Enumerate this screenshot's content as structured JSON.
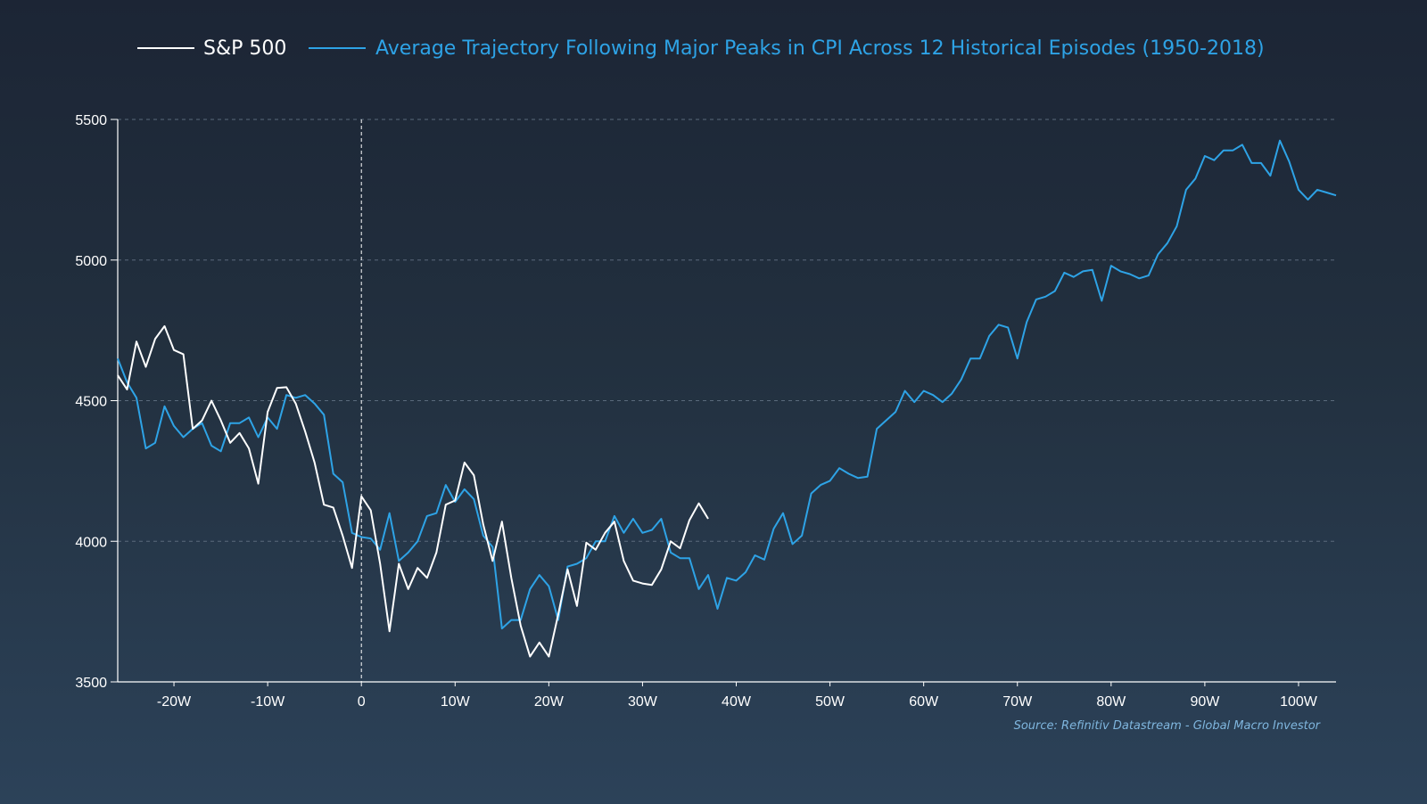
{
  "colors": {
    "background_top": "#1c2535",
    "background_bottom": "#2c4259",
    "sp500": "#ffffff",
    "average": "#2ea3e6",
    "axis": "#ffffff",
    "grid": "#5a6a7c",
    "source": "#7fb6de"
  },
  "legend": {
    "items": [
      {
        "label": "S&P 500",
        "color": "#ffffff"
      },
      {
        "label": "Average Trajectory Following Major Peaks in CPI Across 12 Historical Episodes (1950-2018)",
        "color": "#2ea3e6"
      }
    ]
  },
  "source": "Source: Refinitiv Datastream - Global Macro Investor",
  "chart_data": {
    "type": "line",
    "title": "",
    "xlabel": "",
    "ylabel": "",
    "xlim": [
      -26,
      104
    ],
    "ylim": [
      3500,
      5500
    ],
    "x_ticks": [
      {
        "value": -20,
        "label": "-20W"
      },
      {
        "value": -10,
        "label": "-10W"
      },
      {
        "value": 0,
        "label": "0"
      },
      {
        "value": 10,
        "label": "10W"
      },
      {
        "value": 20,
        "label": "20W"
      },
      {
        "value": 30,
        "label": "30W"
      },
      {
        "value": 40,
        "label": "40W"
      },
      {
        "value": 50,
        "label": "50W"
      },
      {
        "value": 60,
        "label": "60W"
      },
      {
        "value": 70,
        "label": "70W"
      },
      {
        "value": 80,
        "label": "80W"
      },
      {
        "value": 90,
        "label": "90W"
      },
      {
        "value": 100,
        "label": "100W"
      }
    ],
    "y_ticks": [
      3500,
      4000,
      4500,
      5000,
      5500
    ],
    "grid": "horizontal dashed",
    "reference_line_x": 0,
    "legend_position": "top",
    "series": [
      {
        "name": "S&P 500",
        "color": "#ffffff",
        "x": [
          -26,
          -25,
          -24,
          -23,
          -22,
          -21,
          -20,
          -19,
          -18,
          -17,
          -16,
          -15,
          -14,
          -13,
          -12,
          -11,
          -10,
          -9,
          -8,
          -7,
          -6,
          -5,
          -4,
          -3,
          -2,
          -1,
          0,
          1,
          2,
          3,
          4,
          5,
          6,
          7,
          8,
          9,
          10,
          11,
          12,
          13,
          14,
          15,
          16,
          17,
          18,
          19,
          20,
          21,
          22,
          23,
          24,
          25,
          26,
          27,
          28,
          29,
          30,
          31,
          32,
          33,
          34,
          35,
          36,
          37
        ],
        "values": [
          4590,
          4540,
          4710,
          4620,
          4720,
          4765,
          4680,
          4665,
          4400,
          4430,
          4500,
          4430,
          4350,
          4385,
          4330,
          4205,
          4460,
          4545,
          4548,
          4490,
          4390,
          4280,
          4130,
          4120,
          4020,
          3905,
          4160,
          4110,
          3920,
          3680,
          3920,
          3830,
          3905,
          3870,
          3960,
          4130,
          4145,
          4280,
          4235,
          4060,
          3930,
          4070,
          3870,
          3700,
          3590,
          3640,
          3590,
          3740,
          3900,
          3770,
          3995,
          3970,
          4030,
          4070,
          3930,
          3860,
          3850,
          3845,
          3900,
          4000,
          3975,
          4075,
          4135,
          4080
        ]
      },
      {
        "name": "Average Trajectory Following Major Peaks in CPI Across 12 Historical Episodes (1950-2018)",
        "color": "#2ea3e6",
        "x": [
          -26,
          -25,
          -24,
          -23,
          -22,
          -21,
          -20,
          -19,
          -18,
          -17,
          -16,
          -15,
          -14,
          -13,
          -12,
          -11,
          -10,
          -9,
          -8,
          -7,
          -6,
          -5,
          -4,
          -3,
          -2,
          -1,
          0,
          1,
          2,
          3,
          4,
          5,
          6,
          7,
          8,
          9,
          10,
          11,
          12,
          13,
          14,
          15,
          16,
          17,
          18,
          19,
          20,
          21,
          22,
          23,
          24,
          25,
          26,
          27,
          28,
          29,
          30,
          31,
          32,
          33,
          34,
          35,
          36,
          37,
          38,
          39,
          40,
          41,
          42,
          43,
          44,
          45,
          46,
          47,
          48,
          49,
          50,
          51,
          52,
          53,
          54,
          55,
          56,
          57,
          58,
          59,
          60,
          61,
          62,
          63,
          64,
          65,
          66,
          67,
          68,
          69,
          70,
          71,
          72,
          73,
          74,
          75,
          76,
          77,
          78,
          79,
          80,
          81,
          82,
          83,
          84,
          85,
          86,
          87,
          88,
          89,
          90,
          91,
          92,
          93,
          94,
          95,
          96,
          97,
          98,
          99,
          100,
          101,
          102,
          103,
          104
        ],
        "values": [
          4650,
          4565,
          4510,
          4330,
          4350,
          4480,
          4410,
          4370,
          4400,
          4420,
          4340,
          4320,
          4420,
          4420,
          4440,
          4370,
          4440,
          4400,
          4520,
          4510,
          4520,
          4490,
          4450,
          4240,
          4210,
          4030,
          4015,
          4010,
          3970,
          4100,
          3930,
          3960,
          4000,
          4090,
          4100,
          4200,
          4140,
          4185,
          4150,
          4020,
          3980,
          3690,
          3720,
          3720,
          3830,
          3880,
          3840,
          3720,
          3910,
          3920,
          3940,
          4000,
          4000,
          4090,
          4030,
          4080,
          4030,
          4040,
          4080,
          3960,
          3940,
          3940,
          3830,
          3880,
          3760,
          3870,
          3860,
          3890,
          3950,
          3935,
          4045,
          4100,
          3990,
          4020,
          4170,
          4200,
          4215,
          4260,
          4240,
          4225,
          4230,
          4400,
          4430,
          4460,
          4535,
          4495,
          4535,
          4520,
          4495,
          4525,
          4575,
          4650,
          4650,
          4730,
          4770,
          4760,
          4650,
          4780,
          4860,
          4870,
          4890,
          4955,
          4940,
          4960,
          4965,
          4855,
          4980,
          4960,
          4950,
          4935,
          4945,
          5020,
          5060,
          5120,
          5250,
          5290,
          5370,
          5355,
          5390,
          5390,
          5410,
          5345,
          5345,
          5300,
          5425,
          5350,
          5250,
          5215,
          5250,
          5240,
          5230
        ]
      }
    ]
  }
}
